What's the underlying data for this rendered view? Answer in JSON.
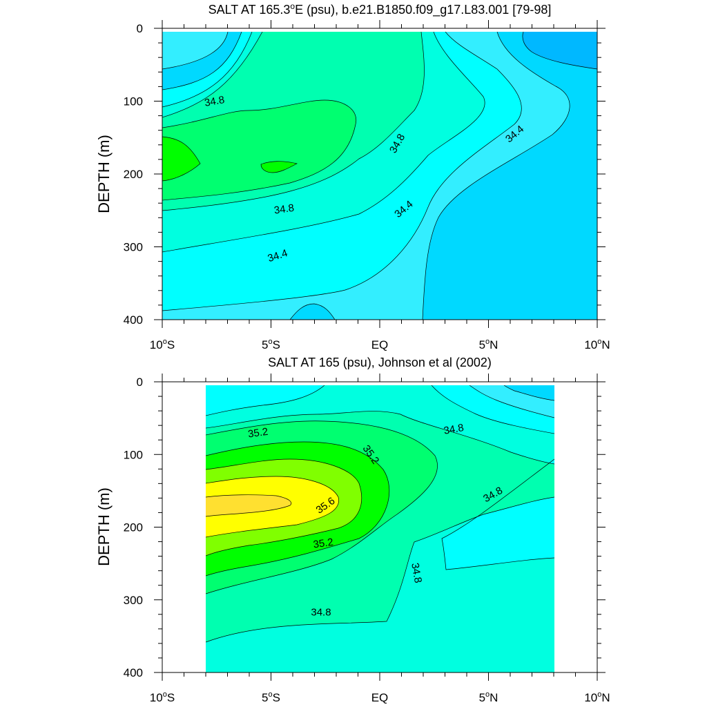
{
  "chart_data": [
    {
      "type": "contour",
      "title": "SALT AT 165.3°E (psu), b.e21.B1850.f09_g17.L83.001 [79-98]",
      "title_parts": {
        "pre": "SALT AT 165.3",
        "sup": "o",
        "post": "E (psu), b.e21.B1850.f09_g17.L83.001 [79-98]"
      },
      "ylabel": "DEPTH (m)",
      "xlim": [
        -10,
        10
      ],
      "ylim": [
        0,
        400
      ],
      "y_inverted": true,
      "xticks": [
        {
          "value": -10,
          "pre": "10",
          "sup": "o",
          "post": "S"
        },
        {
          "value": -5,
          "pre": "5",
          "sup": "o",
          "post": "S"
        },
        {
          "value": 0,
          "pre": "EQ",
          "sup": "",
          "post": ""
        },
        {
          "value": 5,
          "pre": "5",
          "sup": "o",
          "post": "N"
        },
        {
          "value": 10,
          "pre": "10",
          "sup": "o",
          "post": "N"
        }
      ],
      "yticks": [
        {
          "value": 0,
          "label": "0"
        },
        {
          "value": 100,
          "label": "100"
        },
        {
          "value": 200,
          "label": "200"
        },
        {
          "value": 300,
          "label": "300"
        },
        {
          "value": 400,
          "label": "400"
        }
      ],
      "contour_labels": [
        {
          "text": "34.8",
          "x": -7.6,
          "y": 100,
          "rot": -10
        },
        {
          "text": "34.8",
          "x": 0.8,
          "y": 158,
          "rot": -60
        },
        {
          "text": "34.4",
          "x": 6.2,
          "y": 145,
          "rot": -40
        },
        {
          "text": "34.8",
          "x": -4.4,
          "y": 248,
          "rot": -8
        },
        {
          "text": "34.4",
          "x": 1.1,
          "y": 248,
          "rot": -40
        },
        {
          "text": "34.4",
          "x": -4.7,
          "y": 312,
          "rot": -18
        }
      ]
    },
    {
      "type": "contour",
      "title": "SALT AT 165 (psu), Johnson et al (2002)",
      "title_parts": {
        "pre": "SALT AT 165 (psu), Johnson et al (2002)",
        "sup": "",
        "post": ""
      },
      "ylabel": "DEPTH (m)",
      "xlim": [
        -10,
        10
      ],
      "ylim": [
        0,
        400
      ],
      "y_inverted": true,
      "data_xlim": [
        -8,
        8
      ],
      "xticks": [
        {
          "value": -10,
          "pre": "10",
          "sup": "o",
          "post": "S"
        },
        {
          "value": -5,
          "pre": "5",
          "sup": "o",
          "post": "S"
        },
        {
          "value": 0,
          "pre": "EQ",
          "sup": "",
          "post": ""
        },
        {
          "value": 5,
          "pre": "5",
          "sup": "o",
          "post": "N"
        },
        {
          "value": 10,
          "pre": "10",
          "sup": "o",
          "post": "N"
        }
      ],
      "yticks": [
        {
          "value": 0,
          "label": "0"
        },
        {
          "value": 100,
          "label": "100"
        },
        {
          "value": 200,
          "label": "200"
        },
        {
          "value": 300,
          "label": "300"
        },
        {
          "value": 400,
          "label": "400"
        }
      ],
      "contour_labels": [
        {
          "text": "35.2",
          "x": -5.6,
          "y": 70,
          "rot": -8
        },
        {
          "text": "34.8",
          "x": 3.4,
          "y": 65,
          "rot": -10
        },
        {
          "text": "35.2",
          "x": -0.4,
          "y": 100,
          "rot": 55
        },
        {
          "text": "34.8",
          "x": 5.2,
          "y": 155,
          "rot": -30
        },
        {
          "text": "35.6",
          "x": -2.5,
          "y": 170,
          "rot": -35
        },
        {
          "text": "35.2",
          "x": -2.6,
          "y": 222,
          "rot": -8
        },
        {
          "text": "34.8",
          "x": 1.7,
          "y": 263,
          "rot": 80
        },
        {
          "text": "34.8",
          "x": -2.7,
          "y": 317,
          "rot": 0
        }
      ]
    }
  ],
  "colors": {
    "s33_8": "#00b8ff",
    "s34_0": "#00d9ff",
    "s34_2": "#33eeff",
    "s34_4": "#00ffff",
    "s34_6": "#00ffe0",
    "s34_8": "#00ffb0",
    "s35_0": "#00ff70",
    "s35_2": "#00ff00",
    "s35_4": "#80ff00",
    "s35_6": "#ffff00",
    "s35_8": "#ffe030"
  }
}
